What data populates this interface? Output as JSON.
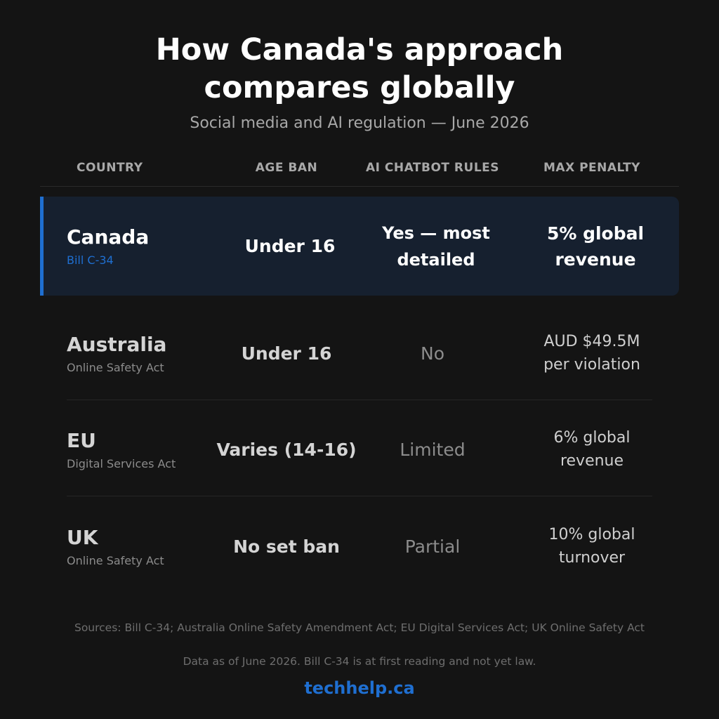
{
  "header": {
    "title": "How Canada's approach compares globally",
    "subtitle": "Social media and AI regulation — June 2026"
  },
  "table": {
    "columns": [
      "COUNTRY",
      "AGE BAN",
      "AI CHATBOT RULES",
      "MAX PENALTY"
    ],
    "rows": [
      {
        "country": "Canada",
        "act": "Bill C-34",
        "age_ban": "Under 16",
        "ai_rules": "Yes — most detailed",
        "penalty": "5% global revenue"
      },
      {
        "country": "Australia",
        "act": "Online Safety Act",
        "age_ban": "Under 16",
        "ai_rules": "No",
        "penalty": "AUD $49.5M per violation"
      },
      {
        "country": "EU",
        "act": "Digital Services Act",
        "age_ban": "Varies (14-16)",
        "ai_rules": "Limited",
        "penalty": "6% global revenue"
      },
      {
        "country": "UK",
        "act": "Online Safety Act",
        "age_ban": "No set ban",
        "ai_rules": "Partial",
        "penalty": "10% global turnover"
      }
    ]
  },
  "footer": {
    "sources": "Sources: Bill C-34; Australia Online Safety Amendment Act; EU Digital Services Act; UK Online Safety Act",
    "note": "Data as of June 2026. Bill C-34 is at first reading and not yet law.",
    "brand": "techhelp.ca"
  }
}
